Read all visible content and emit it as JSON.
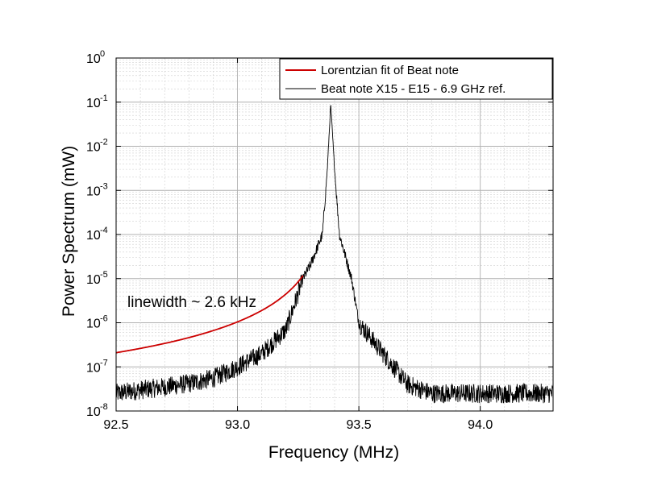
{
  "chart_data": {
    "type": "line",
    "xlabel": "Frequency (MHz)",
    "ylabel": "Power Spectrum (mW)",
    "xlim": [
      92.5,
      94.3
    ],
    "ylim_log10": [
      -8,
      0
    ],
    "y_scale": "log",
    "x_ticks": [
      92.5,
      93.0,
      93.5,
      94.0
    ],
    "x_tick_labels": [
      "92.5",
      "93.0",
      "93.5",
      "94.0"
    ],
    "y_tick_exponents": [
      0,
      -1,
      -2,
      -3,
      -4,
      -5,
      -6,
      -7,
      -8
    ],
    "y_tick_base": "10",
    "grid": true,
    "legend_position": "top-right",
    "annotation": "linewidth ~ 2.6 kHz",
    "series": [
      {
        "name": "Lorentzian fit of Beat note",
        "color": "#cc0000",
        "x_range": [
          92.5,
          93.27
        ],
        "center_mhz": 93.384,
        "peak_mw": 0.09,
        "linewidth_khz": 2.6,
        "background_mw": 1.5e-08
      },
      {
        "name": "Beat note X15 - E15 - 6.9 GHz ref.",
        "color": "#000000",
        "points": [
          [
            92.5,
            2.5e-08
          ],
          [
            92.6,
            3e-08
          ],
          [
            92.7,
            3.5e-08
          ],
          [
            92.8,
            4.2e-08
          ],
          [
            92.9,
            5.5e-08
          ],
          [
            93.0,
            1e-07
          ],
          [
            93.1,
            2e-07
          ],
          [
            93.2,
            7e-07
          ],
          [
            93.27,
            1e-05
          ],
          [
            93.3,
            2e-05
          ],
          [
            93.35,
            0.0001
          ],
          [
            93.37,
            0.003
          ],
          [
            93.384,
            0.09
          ],
          [
            93.4,
            0.003
          ],
          [
            93.42,
            0.0001
          ],
          [
            93.47,
            1e-05
          ],
          [
            93.5,
            1e-06
          ],
          [
            93.6,
            2e-07
          ],
          [
            93.7,
            4e-08
          ],
          [
            93.8,
            2.5e-08
          ],
          [
            94.0,
            2.5e-08
          ],
          [
            94.3,
            2.5e-08
          ]
        ]
      }
    ]
  }
}
